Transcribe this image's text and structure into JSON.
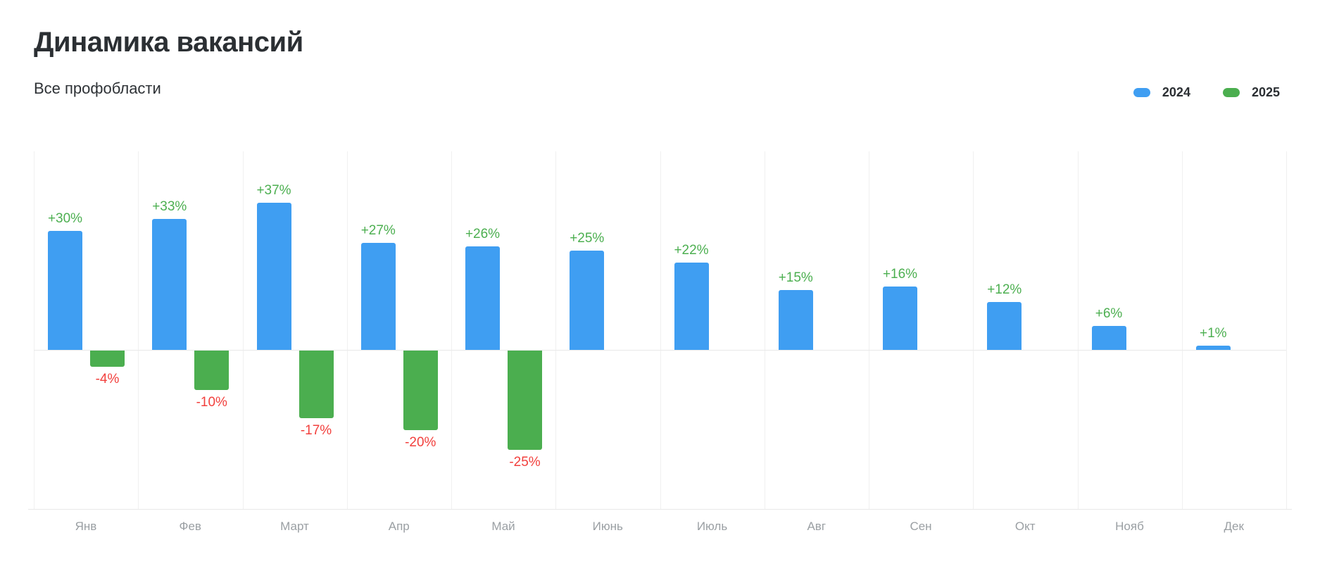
{
  "header": {
    "title": "Динамика вакансий",
    "subtitle": "Все профобласти"
  },
  "legend": {
    "items": [
      {
        "label": "2024",
        "color": "#3F9EF2"
      },
      {
        "label": "2025",
        "color": "#4BAE4F"
      }
    ]
  },
  "chart_data": {
    "type": "bar",
    "title": "Динамика вакансий",
    "subtitle": "Все профобласти",
    "categories": [
      "Янв",
      "Фев",
      "Март",
      "Апр",
      "Май",
      "Июнь",
      "Июль",
      "Авг",
      "Сен",
      "Окт",
      "Нояб",
      "Дек"
    ],
    "series": [
      {
        "name": "2024",
        "bar_color": "#3F9EF2",
        "label_color": "#4CAF50",
        "values": [
          30,
          33,
          37,
          27,
          26,
          25,
          22,
          15,
          16,
          12,
          6,
          1
        ],
        "labels": [
          "+30%",
          "+33%",
          "+37%",
          "+27%",
          "+26%",
          "+25%",
          "+22%",
          "+15%",
          "+16%",
          "+12%",
          "+6%",
          "+1%"
        ]
      },
      {
        "name": "2025",
        "bar_color": "#4BAE4F",
        "label_color": "#F2403D",
        "values": [
          -4,
          -10,
          -17,
          -20,
          -25,
          null,
          null,
          null,
          null,
          null,
          null,
          null
        ],
        "labels": [
          "-4%",
          "-10%",
          "-17%",
          "-20%",
          "-25%",
          null,
          null,
          null,
          null,
          null,
          null,
          null
        ]
      }
    ],
    "ylim": [
      -40,
      50
    ],
    "unit": "%",
    "grid": "vertical-gridlines, zero-line, bottom-line",
    "legend_position": "top-right"
  }
}
